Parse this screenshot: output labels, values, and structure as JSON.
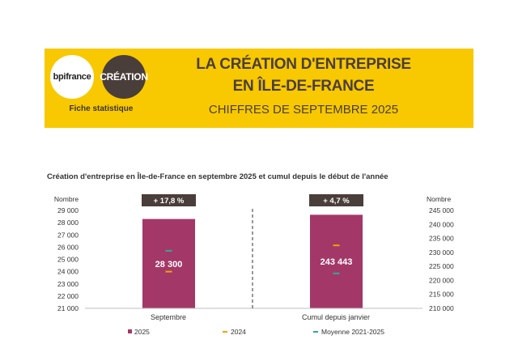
{
  "header": {
    "logo_bpi": "bpifrance",
    "logo_creation": "CRÉATION",
    "fiche": "Fiche statistique",
    "title_line1": "LA CRÉATION D'ENTREPRISE",
    "title_line2": "EN ÎLE-DE-FRANCE",
    "subtitle": "CHIFFRES DE SEPTEMBRE 2025"
  },
  "colors": {
    "banner": "#f8c800",
    "bar": "#a33868",
    "line_2024": "#f5a300",
    "line_moyenne": "#2fa89a",
    "badge": "#4a3e3a"
  },
  "chart_data": {
    "type": "bar",
    "title": "Création d'entreprise en Île-de-France en septembre 2025 et cumul depuis le début de l'année",
    "panels": [
      {
        "category": "Septembre",
        "axis_label": "Nombre",
        "axis_side": "left",
        "ylim": [
          21000,
          29000
        ],
        "ticks": [
          "21 000",
          "22 000",
          "23 000",
          "24 000",
          "25 000",
          "26 000",
          "27 000",
          "28 000",
          "29 000"
        ],
        "tick_values": [
          21000,
          22000,
          23000,
          24000,
          25000,
          26000,
          27000,
          28000,
          29000
        ],
        "value_2025": 28300,
        "value_label": "28 300",
        "value_2024": 24000,
        "value_moyenne": 25700,
        "badge": "+ 17,8 %"
      },
      {
        "category": "Cumul depuis janvier",
        "axis_label": "Nombre",
        "axis_side": "right",
        "ylim": [
          210000,
          245000
        ],
        "ticks": [
          "210 000",
          "215 000",
          "220 000",
          "225 000",
          "230 000",
          "235 000",
          "240 000",
          "245 000"
        ],
        "tick_values": [
          210000,
          215000,
          220000,
          225000,
          230000,
          235000,
          240000,
          245000
        ],
        "value_2025": 243443,
        "value_label": "243 443",
        "value_2024": 232500,
        "value_moyenne": 222500,
        "badge": "+ 4,7 %"
      }
    ],
    "legend": [
      "2025",
      "2024",
      "Moyenne 2021-2025"
    ],
    "legend_position": "bottom"
  }
}
